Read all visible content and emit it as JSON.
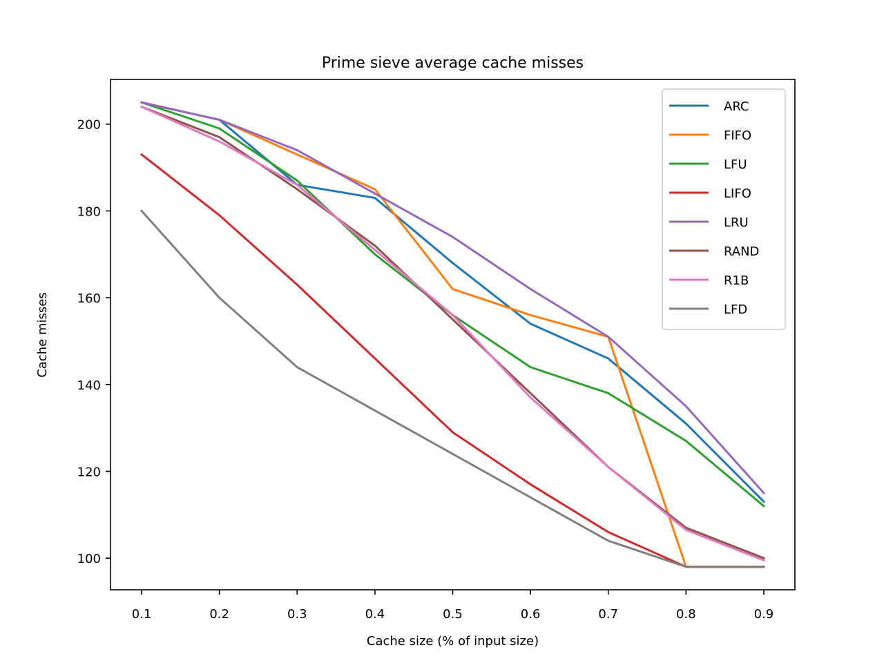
{
  "chart_data": {
    "type": "line",
    "title": "Prime sieve average cache misses",
    "xlabel": "Cache size (% of input size)",
    "ylabel": "Cache misses",
    "xlim": [
      0.06,
      0.94
    ],
    "ylim": [
      92.7,
      210.3
    ],
    "x": [
      0.1,
      0.2,
      0.3,
      0.4,
      0.5,
      0.6,
      0.7,
      0.8,
      0.9
    ],
    "x_ticks": [
      0.1,
      0.2,
      0.3,
      0.4,
      0.5,
      0.6,
      0.7,
      0.8,
      0.9
    ],
    "x_tick_labels": [
      "0.1",
      "0.2",
      "0.3",
      "0.4",
      "0.5",
      "0.6",
      "0.7",
      "0.8",
      "0.9"
    ],
    "y_ticks": [
      100,
      120,
      140,
      160,
      180,
      200
    ],
    "y_tick_labels": [
      "100",
      "120",
      "140",
      "160",
      "180",
      "200"
    ],
    "grid": false,
    "legend_position": "top-right",
    "series": [
      {
        "name": "ARC",
        "color": "#1f77b4",
        "values": [
          205,
          201,
          186,
          183,
          168,
          154,
          146,
          131,
          113
        ]
      },
      {
        "name": "FIFO",
        "color": "#ff7f0e",
        "values": [
          205,
          201,
          193,
          185,
          162,
          156,
          151,
          98,
          98
        ]
      },
      {
        "name": "LFU",
        "color": "#2ca02c",
        "values": [
          205,
          199,
          187,
          170,
          156,
          144,
          138,
          127,
          112
        ]
      },
      {
        "name": "LIFO",
        "color": "#d62728",
        "values": [
          193,
          179,
          163,
          146,
          129,
          117,
          106,
          98,
          98
        ]
      },
      {
        "name": "LRU",
        "color": "#9467bd",
        "values": [
          205,
          201,
          194,
          184,
          174,
          162,
          151,
          135,
          115
        ]
      },
      {
        "name": "RAND",
        "color": "#8c564b",
        "values": [
          204,
          197,
          185,
          172,
          155,
          138,
          121,
          107,
          100
        ]
      },
      {
        "name": "R1B",
        "color": "#e377c2",
        "values": [
          204,
          196,
          186,
          171,
          156,
          137,
          121,
          106.5,
          99.5
        ]
      },
      {
        "name": "LFD",
        "color": "#7f7f7f",
        "values": [
          180,
          160,
          144,
          134,
          124,
          114,
          104,
          98,
          98
        ]
      }
    ]
  }
}
